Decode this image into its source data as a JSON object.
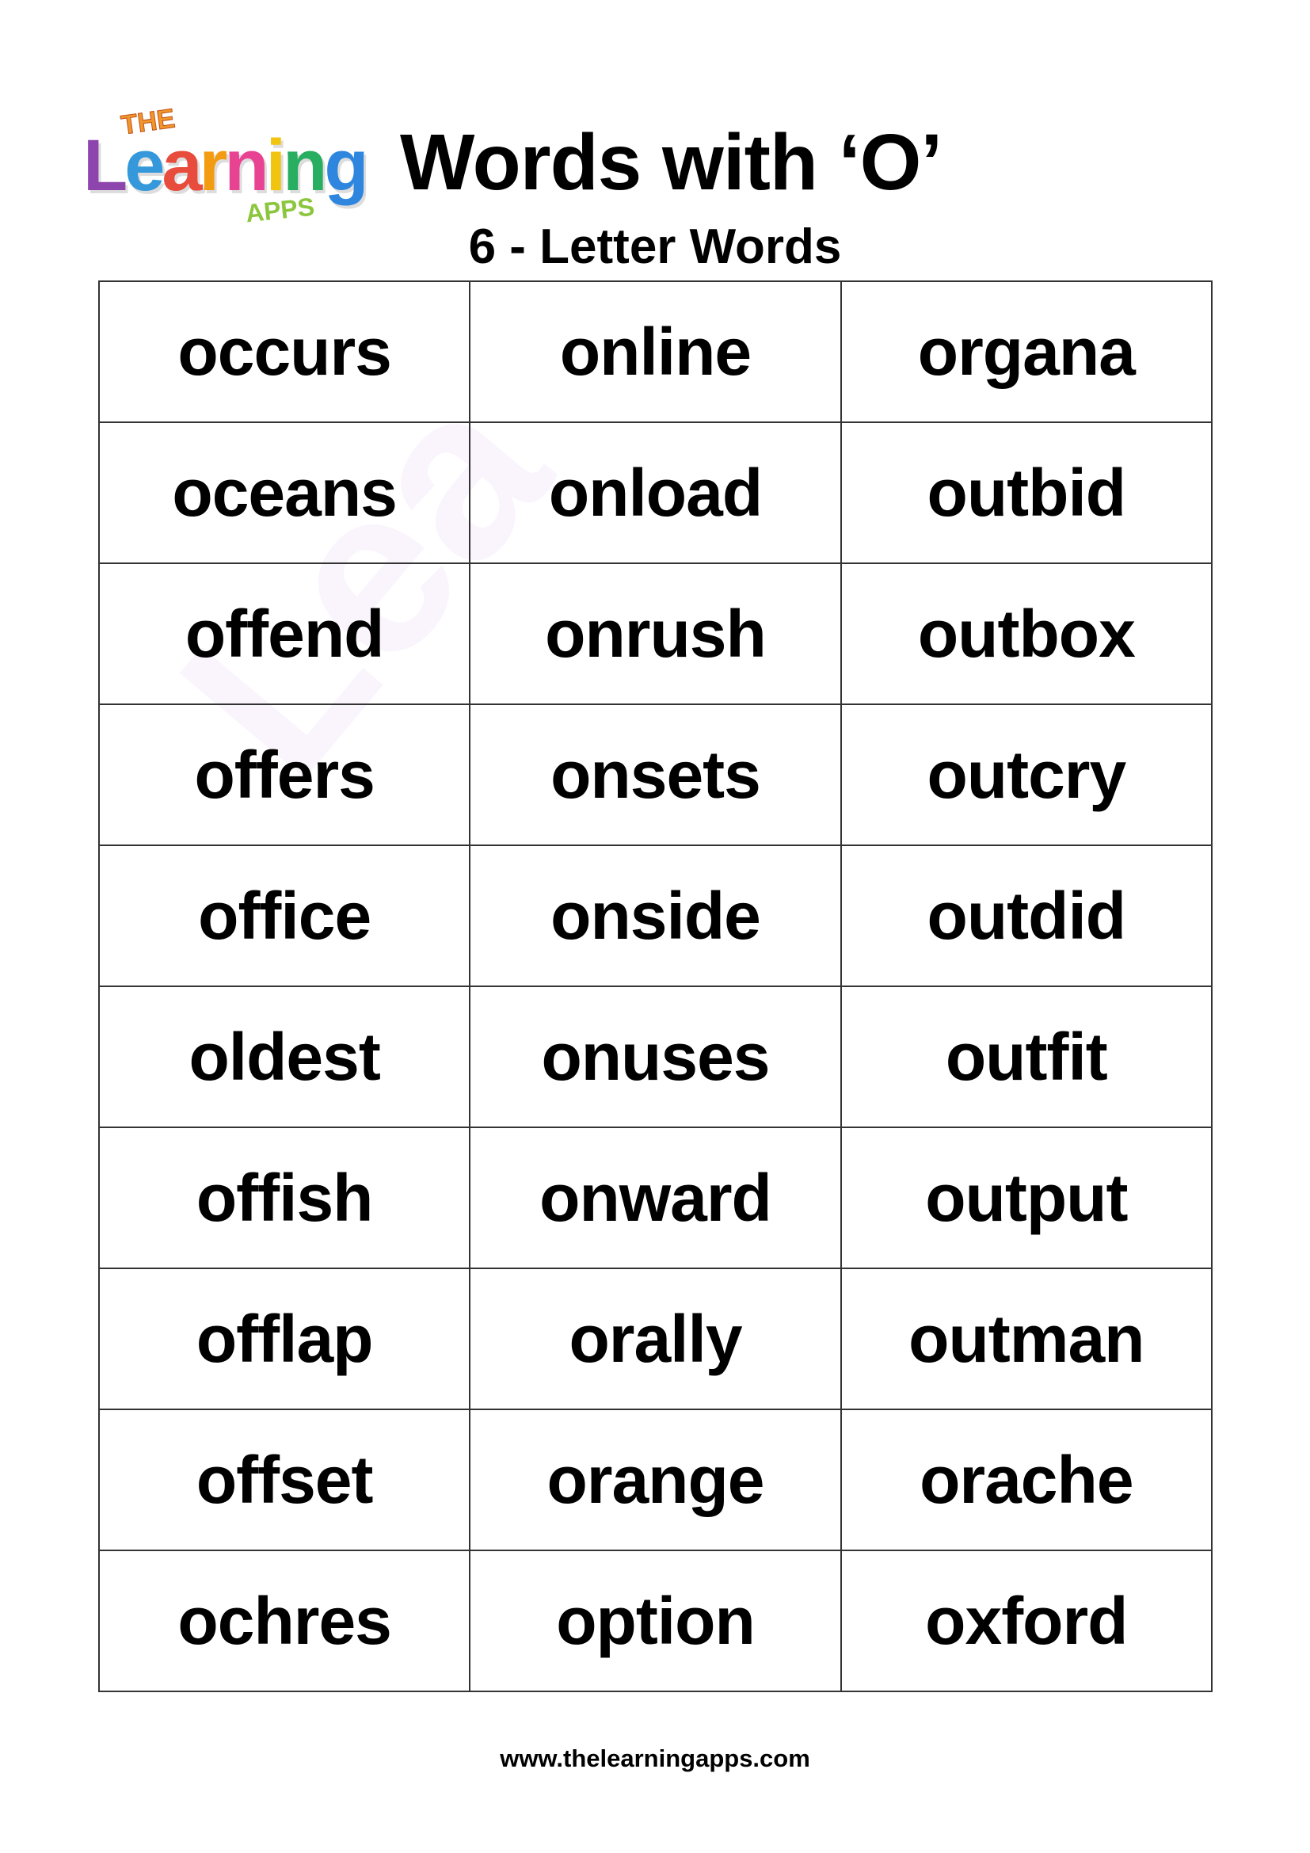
{
  "logo": {
    "the": "THE",
    "learning": "Learning",
    "apps": "APPS",
    "colors": [
      "#8e44ad",
      "#3498db",
      "#e74c3c",
      "#f39c12",
      "#e84393",
      "#f1c40f",
      "#27ae60",
      "#2e86de"
    ]
  },
  "header": {
    "title": "Words with ‘O’",
    "subtitle": "6 - Letter Words"
  },
  "words": [
    [
      "occurs",
      "online",
      "organa"
    ],
    [
      "oceans",
      "onload",
      "outbid"
    ],
    [
      "offend",
      "onrush",
      "outbox"
    ],
    [
      "offers",
      "onsets",
      "outcry"
    ],
    [
      "office",
      "onside",
      "outdid"
    ],
    [
      "oldest",
      "onuses",
      "outfit"
    ],
    [
      "offish",
      "onward",
      "output"
    ],
    [
      "offlap",
      "orally",
      "outman"
    ],
    [
      "offset",
      "orange",
      "orache"
    ],
    [
      "ochres",
      "option",
      "oxford"
    ]
  ],
  "footer": {
    "url": "www.thelearningapps.com"
  }
}
